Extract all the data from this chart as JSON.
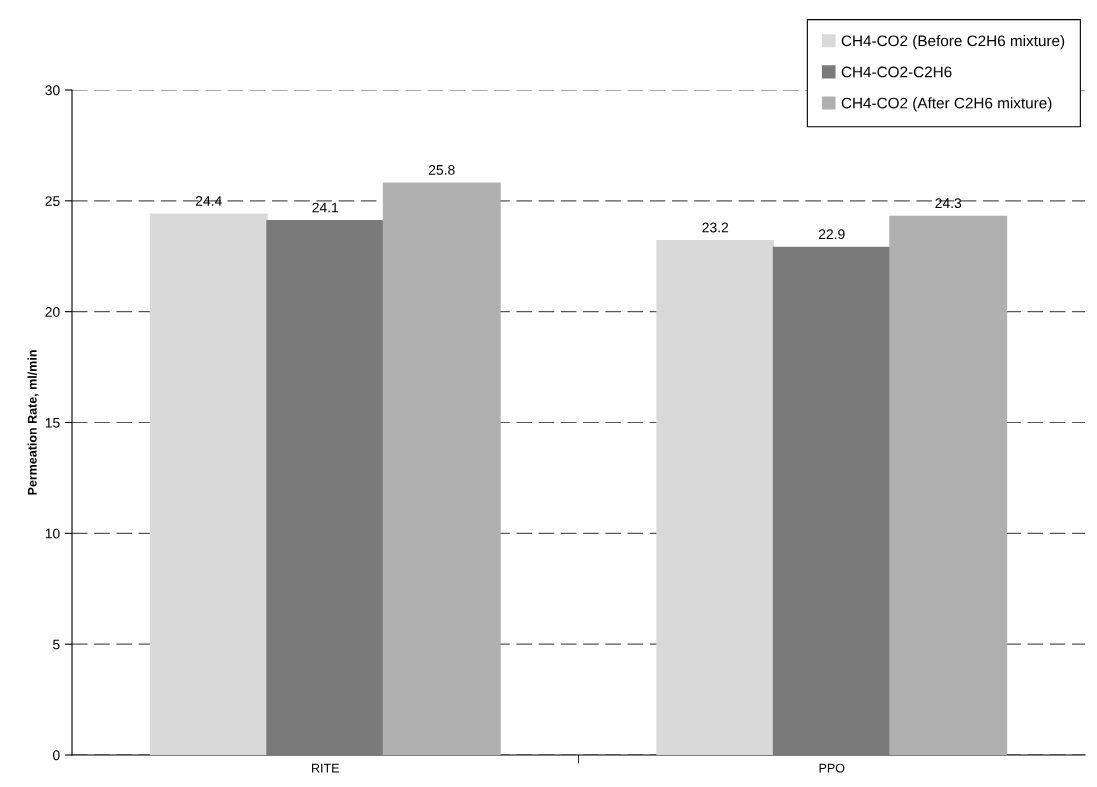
{
  "chart_data": {
    "type": "bar",
    "ylabel": "Permeation Rate, ml/min",
    "categories": [
      "RITE",
      "PPO"
    ],
    "series": [
      {
        "name": "CH4-CO2 (Before C2H6 mixture)",
        "color": "#d9d9d9",
        "values": [
          24.4,
          23.2
        ]
      },
      {
        "name": "CH4-CO2-C2H6",
        "color": "#7a7a7a",
        "values": [
          24.1,
          22.9
        ]
      },
      {
        "name": "CH4-CO2 (After C2H6 mixture)",
        "color": "#b0b0b0",
        "values": [
          25.8,
          24.3
        ]
      }
    ],
    "ylim": [
      0,
      30
    ],
    "yticks": [
      0,
      5,
      10,
      15,
      20,
      25,
      30
    ],
    "grid": "y",
    "legend": "top right",
    "data_labels": true
  }
}
